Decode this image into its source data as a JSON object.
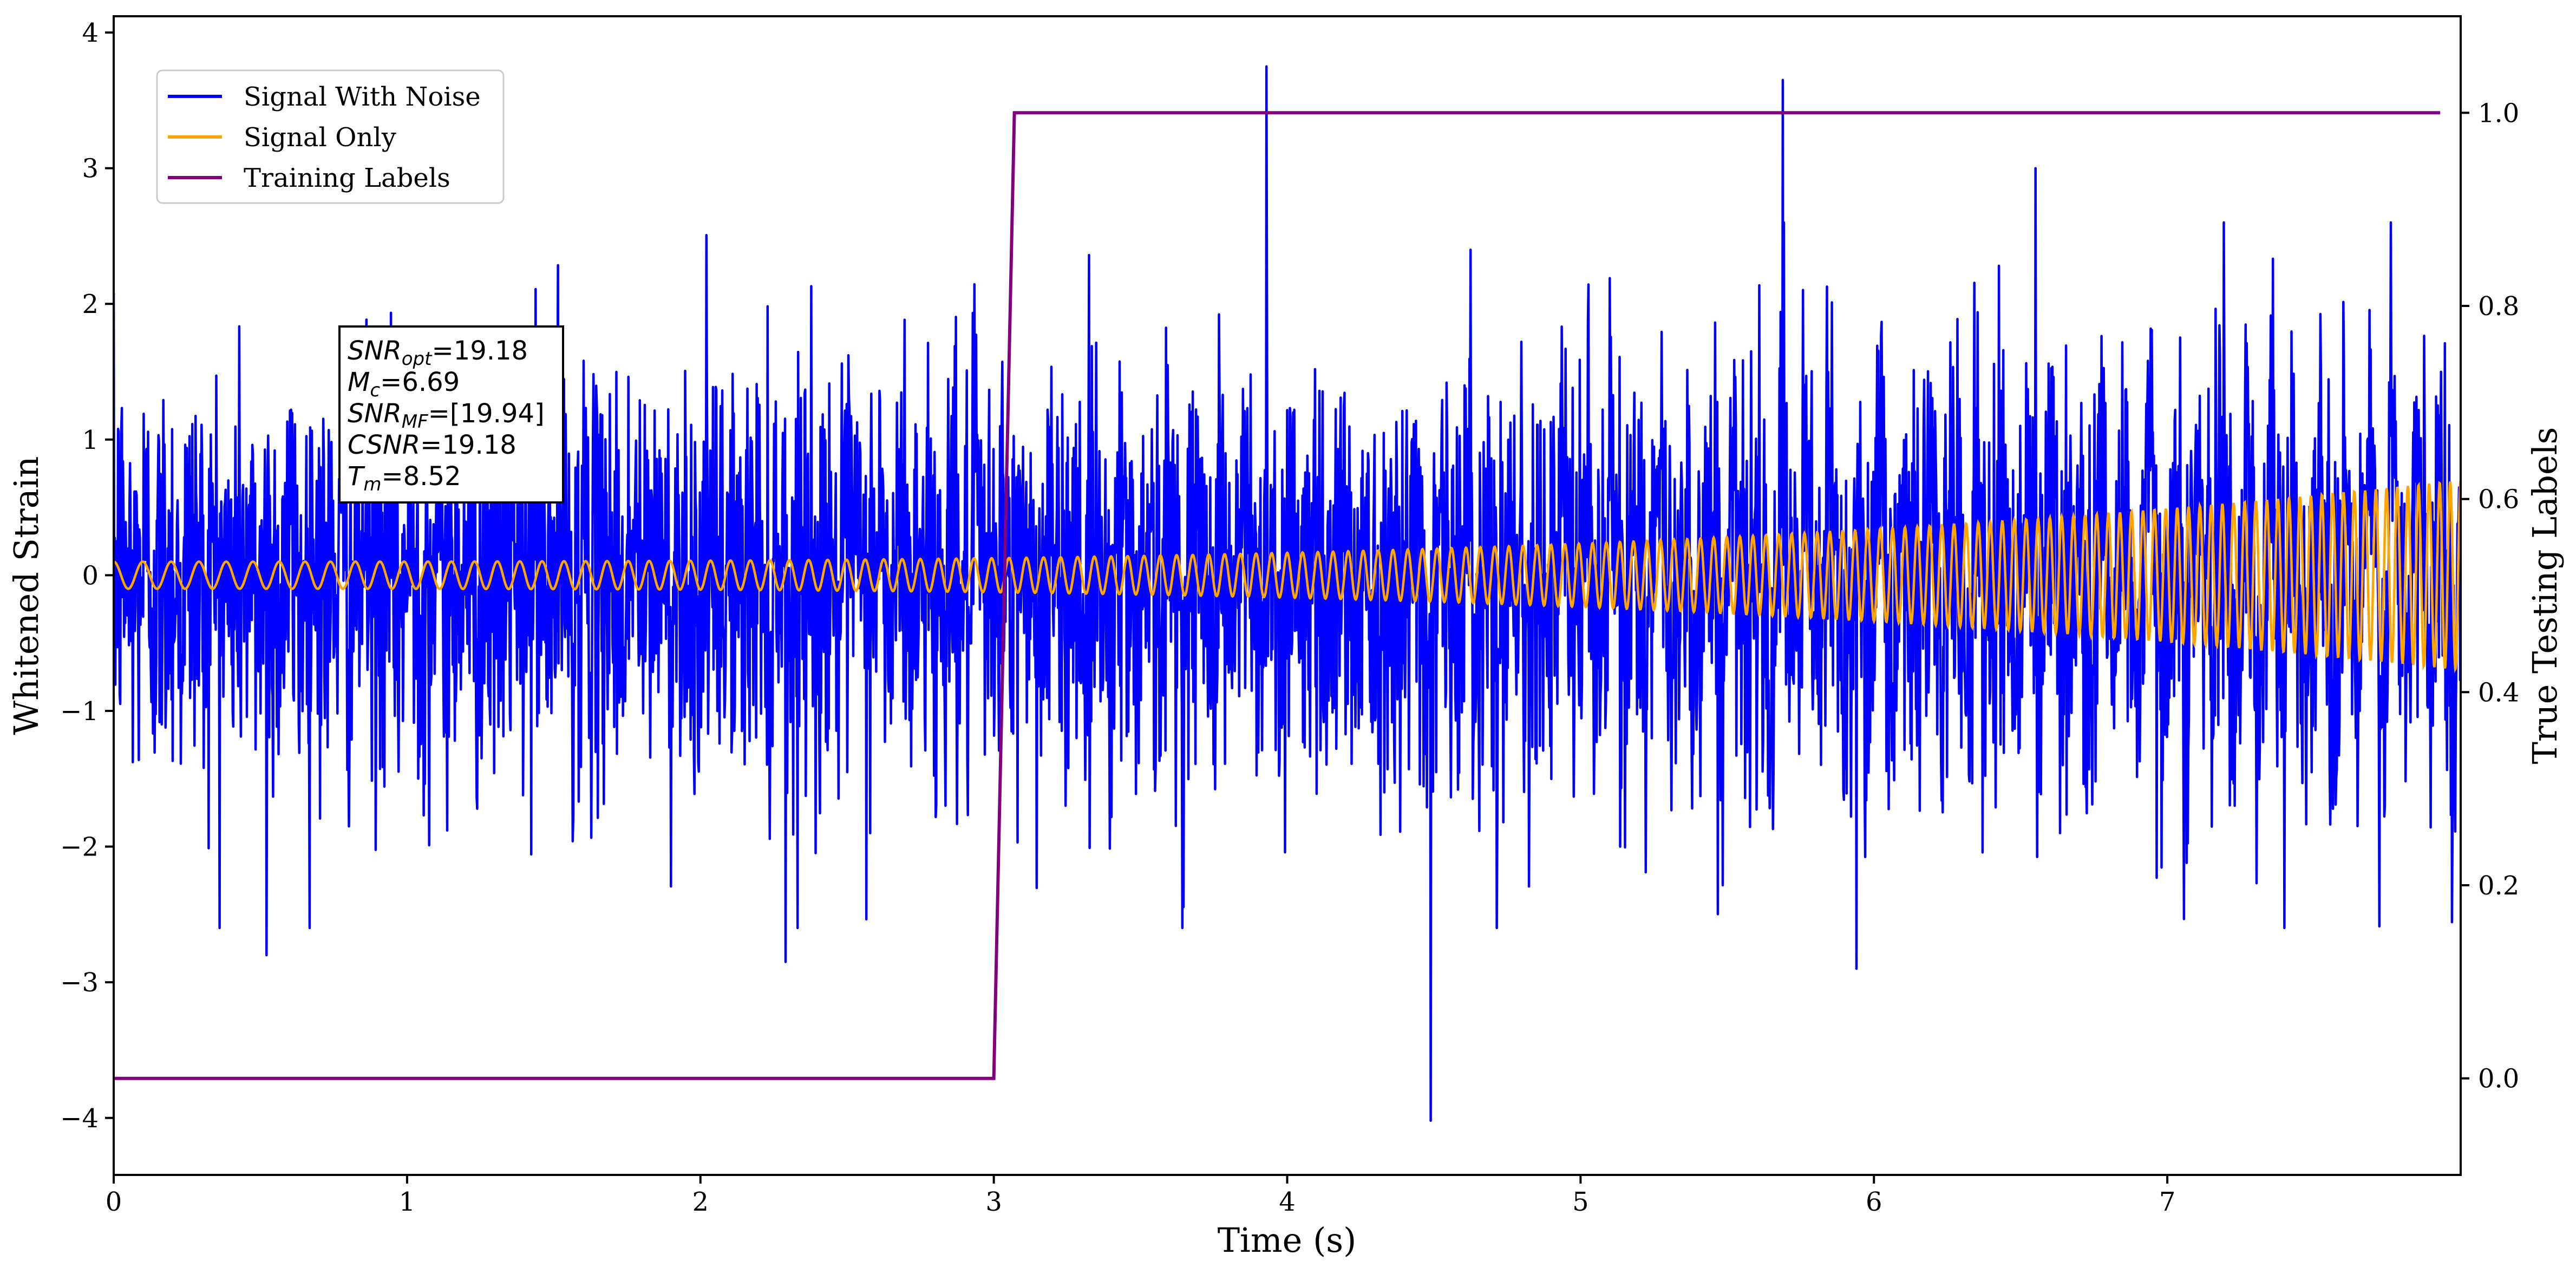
{
  "chart_data": {
    "type": "line",
    "xlabel": "Time (s)",
    "ylabel": "Whitened Strain",
    "y2label": "True Testing Labels",
    "xlim": [
      0,
      8.0
    ],
    "ylim": [
      -4.42,
      4.12
    ],
    "y2lim": [
      -0.1,
      1.1
    ],
    "x_ticks": [
      0,
      1,
      2,
      3,
      4,
      5,
      6,
      7
    ],
    "y_ticks": [
      -4,
      -3,
      -2,
      -1,
      0,
      1,
      2,
      3,
      4
    ],
    "y2_ticks": [
      0.0,
      0.2,
      0.4,
      0.6,
      0.8,
      1.0
    ],
    "x_tick_labels": [
      "0",
      "1",
      "2",
      "3",
      "4",
      "5",
      "6",
      "7"
    ],
    "y_tick_labels": [
      "−4",
      "−3",
      "−2",
      "−1",
      "0",
      "1",
      "2",
      "3",
      "4"
    ],
    "y2_tick_labels": [
      "0.0",
      "0.2",
      "0.4",
      "0.6",
      "0.8",
      "1.0"
    ],
    "grid": false,
    "legend_position": "top-left",
    "series": [
      {
        "name": "Signal With Noise",
        "color": "#0000ff",
        "axis": "left",
        "noise_std": 0.75,
        "spikes": [
          {
            "x": 3.93,
            "y": 3.75
          },
          {
            "x": 5.69,
            "y": 3.65
          },
          {
            "x": 4.49,
            "y": -4.02
          },
          {
            "x": 0.52,
            "y": -2.8
          },
          {
            "x": 5.94,
            "y": -2.9
          },
          {
            "x": 2.29,
            "y": -2.85
          },
          {
            "x": 6.55,
            "y": 3.0
          }
        ]
      },
      {
        "name": "Signal Only",
        "color": "#ffa500",
        "axis": "left",
        "amplitude_start": 0.1,
        "amplitude_end": 0.7,
        "cycles_start_per_s": 10,
        "cycles_end_per_s": 28
      },
      {
        "name": "Training Labels",
        "color": "#800080",
        "axis": "right",
        "x": [
          0,
          3.0,
          3.07,
          7.93
        ],
        "y": [
          0,
          0,
          1,
          1
        ]
      }
    ],
    "annotation": {
      "lines": [
        {
          "main": "SNR",
          "sub": "opt",
          "rest": "=19.18"
        },
        {
          "main": "M",
          "sub": "c",
          "rest": "=6.69"
        },
        {
          "main": "SNR",
          "sub": "MF",
          "rest": "=[19.94]"
        },
        {
          "main": "CSNR",
          "sub": "",
          "rest": "=19.18"
        },
        {
          "main": "T",
          "sub": "m",
          "rest": "=8.52"
        }
      ]
    }
  }
}
